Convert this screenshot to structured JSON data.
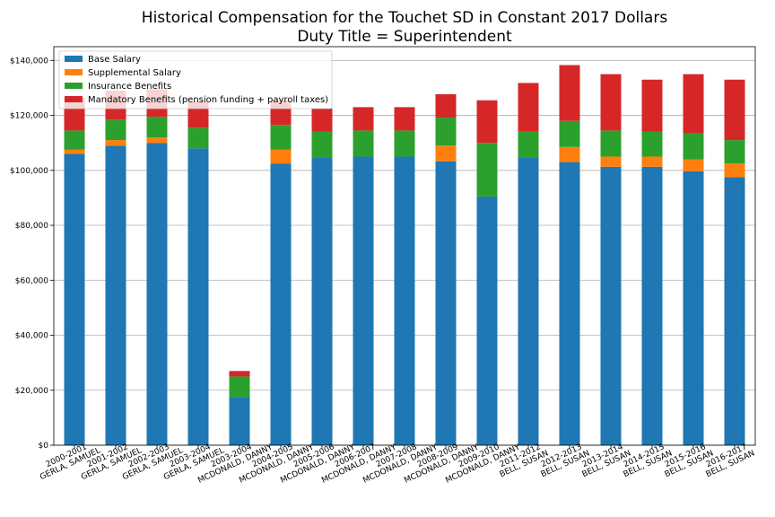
{
  "chart_data": {
    "type": "bar",
    "stacked": true,
    "title": "Historical Compensation for the Touchet SD in Constant 2017 Dollars",
    "subtitle": "Duty Title = Superintendent",
    "xlabel": "",
    "ylabel": "",
    "ylim": [
      0,
      145000
    ],
    "yticks": [
      0,
      20000,
      40000,
      60000,
      80000,
      100000,
      120000,
      140000
    ],
    "ytick_labels": [
      "$0",
      "$20,000",
      "$40,000",
      "$60,000",
      "$80,000",
      "$100,000",
      "$120,000",
      "$140,000"
    ],
    "grid": "horizontal",
    "legend_position": "top-left",
    "categories": [
      [
        "2000-2001",
        "GERLA, SAMUEL"
      ],
      [
        "2001-2002",
        "GERLA, SAMUEL"
      ],
      [
        "2002-2003",
        "GERLA, SAMUEL"
      ],
      [
        "2003-2004",
        "GERLA, SAMUEL"
      ],
      [
        "2003-2004",
        "MCDONALD, DANNY"
      ],
      [
        "2004-2005",
        "MCDONALD, DANNY"
      ],
      [
        "2005-2006",
        "MCDONALD, DANNY"
      ],
      [
        "2006-2007",
        "MCDONALD, DANNY"
      ],
      [
        "2007-2008",
        "MCDONALD, DANNY"
      ],
      [
        "2008-2009",
        "MCDONALD, DANNY"
      ],
      [
        "2009-2010",
        "MCDONALD, DANNY"
      ],
      [
        "2011-2012",
        "BELL, SUSAN"
      ],
      [
        "2012-2013",
        "BELL, SUSAN"
      ],
      [
        "2013-2014",
        "BELL, SUSAN"
      ],
      [
        "2014-2015",
        "BELL, SUSAN"
      ],
      [
        "2015-2016",
        "BELL, SUSAN"
      ],
      [
        "2016-2017",
        "BELL, SUSAN"
      ]
    ],
    "series": [
      {
        "name": "Base Salary",
        "color": "#1f77b4",
        "values": [
          106000,
          109000,
          110000,
          108000,
          17500,
          102500,
          104500,
          105000,
          105000,
          103300,
          90500,
          104500,
          103000,
          101300,
          101300,
          99700,
          97500
        ]
      },
      {
        "name": "Supplemental Salary",
        "color": "#ff7f0e",
        "values": [
          1500,
          2000,
          2000,
          0,
          0,
          5000,
          0,
          0,
          0,
          5700,
          0,
          0,
          5500,
          3700,
          3700,
          4300,
          5000
        ]
      },
      {
        "name": "Insurance Benefits",
        "color": "#2ca02c",
        "values": [
          7000,
          7500,
          7500,
          7500,
          7500,
          9000,
          9500,
          9500,
          9500,
          10200,
          19500,
          9800,
          9500,
          9500,
          9000,
          9500,
          8500
        ]
      },
      {
        "name": "Mandatory Benefits (pension funding + payroll taxes)",
        "color": "#d62728",
        "values": [
          12000,
          10500,
          10000,
          9500,
          2000,
          9000,
          8500,
          8500,
          8500,
          8500,
          15500,
          17500,
          20300,
          20500,
          19000,
          21500,
          22000
        ]
      }
    ]
  }
}
